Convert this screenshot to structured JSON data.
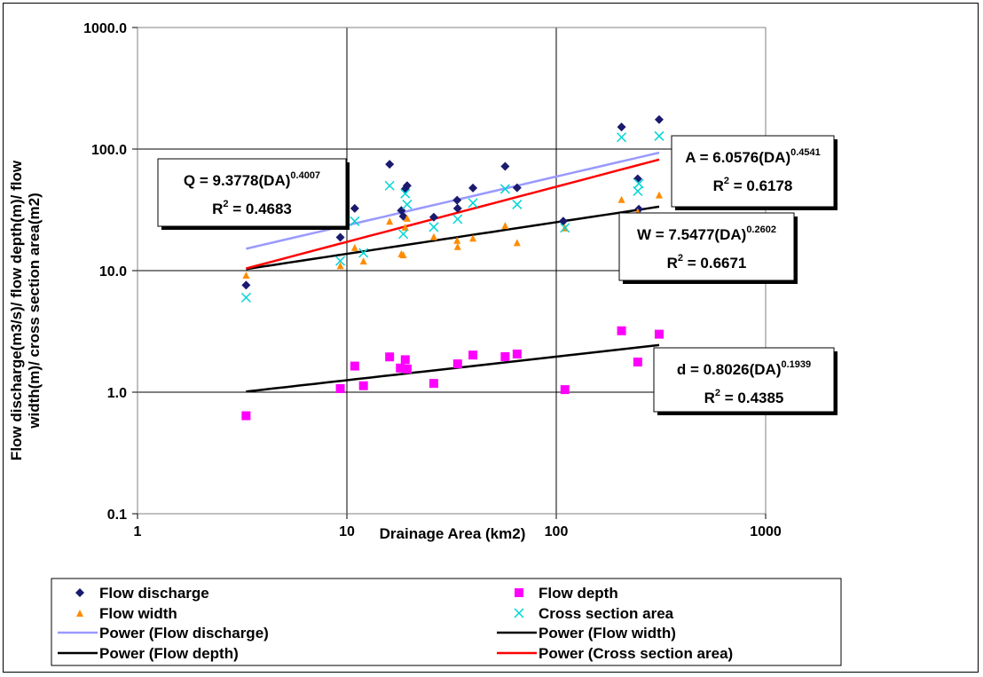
{
  "chart_data": {
    "type": "scatter",
    "xlabel": "Drainage Area (km2)",
    "ylabel_line1": "Flow discharge(m3/s)/ flow depth(m)/ flow",
    "ylabel_line2": "width(m)/ cross section area(m2)",
    "x_scale": "log",
    "y_scale": "log",
    "xlim": [
      1,
      1000
    ],
    "ylim": [
      0.1,
      1000
    ],
    "x_ticks": [
      "1",
      "10",
      "100",
      "1000"
    ],
    "y_ticks": [
      "0.1",
      "1.0",
      "10.0",
      "100.0",
      "1000.0"
    ],
    "grid": true,
    "legend_position": "bottom",
    "series": [
      {
        "name": "Flow discharge",
        "marker": "diamond",
        "color": "#1a1a6e",
        "points": [
          [
            3.3,
            7.6
          ],
          [
            9.3,
            18.8
          ],
          [
            10.9,
            32.5
          ],
          [
            16.0,
            75
          ],
          [
            18.2,
            31.2
          ],
          [
            18.6,
            28
          ],
          [
            19.0,
            47
          ],
          [
            19.4,
            50
          ],
          [
            26.0,
            27.5
          ],
          [
            33.6,
            38
          ],
          [
            33.8,
            32.5
          ],
          [
            40.0,
            47.8
          ],
          [
            57.0,
            72
          ],
          [
            65.0,
            48
          ],
          [
            108,
            25.5
          ],
          [
            205,
            152
          ],
          [
            245,
            57
          ],
          [
            248,
            32
          ],
          [
            310,
            175
          ]
        ]
      },
      {
        "name": "Flow depth",
        "marker": "square",
        "color": "#ff00ff",
        "points": [
          [
            3.3,
            0.64
          ],
          [
            9.3,
            1.07
          ],
          [
            10.9,
            1.64
          ],
          [
            12.0,
            1.13
          ],
          [
            16.0,
            1.95
          ],
          [
            18.0,
            1.58
          ],
          [
            19.0,
            1.85
          ],
          [
            19.4,
            1.55
          ],
          [
            26.0,
            1.18
          ],
          [
            33.8,
            1.71
          ],
          [
            40.0,
            2.02
          ],
          [
            57.0,
            1.96
          ],
          [
            65.0,
            2.06
          ],
          [
            110,
            1.05
          ],
          [
            205,
            3.2
          ],
          [
            245,
            1.77
          ],
          [
            310,
            3.0
          ]
        ]
      },
      {
        "name": "Flow width",
        "marker": "triangle",
        "color": "#ff8c00",
        "points": [
          [
            3.3,
            9.2
          ],
          [
            9.3,
            11.0
          ],
          [
            10.9,
            15.5
          ],
          [
            12.0,
            12.0
          ],
          [
            16.0,
            25.5
          ],
          [
            18.2,
            13.8
          ],
          [
            18.6,
            13.5
          ],
          [
            19.0,
            22.8
          ],
          [
            19.4,
            27
          ],
          [
            26.0,
            19
          ],
          [
            33.6,
            17.8
          ],
          [
            33.8,
            15.8
          ],
          [
            40.0,
            18.5
          ],
          [
            57.0,
            23.5
          ],
          [
            65.0,
            17
          ],
          [
            110,
            22.5
          ],
          [
            205,
            38.5
          ],
          [
            245,
            30.5
          ],
          [
            310,
            42
          ]
        ]
      },
      {
        "name": "Cross section area",
        "marker": "x",
        "color": "#00d5d5",
        "points": [
          [
            3.3,
            6.0
          ],
          [
            9.3,
            12.0
          ],
          [
            10.9,
            25.5
          ],
          [
            12.0,
            14.0
          ],
          [
            16.0,
            50
          ],
          [
            18.6,
            20
          ],
          [
            19.0,
            43
          ],
          [
            19.4,
            35
          ],
          [
            26.0,
            22.8
          ],
          [
            33.8,
            26.5
          ],
          [
            40.0,
            36
          ],
          [
            57.0,
            47
          ],
          [
            65.0,
            35
          ],
          [
            110,
            22.5
          ],
          [
            205,
            125
          ],
          [
            245,
            45
          ],
          [
            248,
            52
          ],
          [
            310,
            128
          ]
        ]
      }
    ],
    "fits": [
      {
        "name": "Power (Flow discharge)",
        "color": "#9999ff",
        "a": 9.3778,
        "b": 0.4007,
        "x_range": [
          3.3,
          310
        ]
      },
      {
        "name": "Power (Flow width)",
        "color": "#000000",
        "a": 7.5477,
        "b": 0.2602,
        "x_range": [
          3.3,
          310
        ]
      },
      {
        "name": "Power (Flow depth)",
        "color": "#000000",
        "a": 0.8026,
        "b": 0.1939,
        "x_range": [
          3.3,
          310
        ]
      },
      {
        "name": "Power (Cross section area)",
        "color": "#ff0000",
        "a": 6.0576,
        "b": 0.4541,
        "x_range": [
          3.3,
          310
        ]
      }
    ],
    "annotations": [
      {
        "id": "q",
        "eq_main": "Q = 9.3778(DA)",
        "eq_exp": "0.4007",
        "r2_label": "R",
        "r2_exp": "2",
        "r2_value": " = 0.4683"
      },
      {
        "id": "a",
        "eq_main": "A = 6.0576(DA)",
        "eq_exp": "0.4541",
        "r2_label": "R",
        "r2_exp": "2",
        "r2_value": " = 0.6178"
      },
      {
        "id": "w",
        "eq_main": "W = 7.5477(DA)",
        "eq_exp": "0.2602",
        "r2_label": "R",
        "r2_exp": "2",
        "r2_value": " = 0.6671"
      },
      {
        "id": "d",
        "eq_main": "d = 0.8026(DA)",
        "eq_exp": "0.1939",
        "r2_label": "R",
        "r2_exp": "2",
        "r2_value": " = 0.4385"
      }
    ],
    "legend": [
      {
        "label": "Flow discharge",
        "symbol": "diamond",
        "color": "#1a1a6e"
      },
      {
        "label": "Flow depth",
        "symbol": "square",
        "color": "#ff00ff"
      },
      {
        "label": "Flow width",
        "symbol": "triangle",
        "color": "#ff8c00"
      },
      {
        "label": "Cross section area",
        "symbol": "x",
        "color": "#00d5d5"
      },
      {
        "label": "Power (Flow discharge)",
        "symbol": "line",
        "color": "#9999ff"
      },
      {
        "label": "Power (Flow width)",
        "symbol": "line",
        "color": "#000000"
      },
      {
        "label": "Power (Flow depth)",
        "symbol": "line",
        "color": "#000000"
      },
      {
        "label": "Power (Cross section area)",
        "symbol": "line",
        "color": "#ff0000"
      }
    ]
  }
}
